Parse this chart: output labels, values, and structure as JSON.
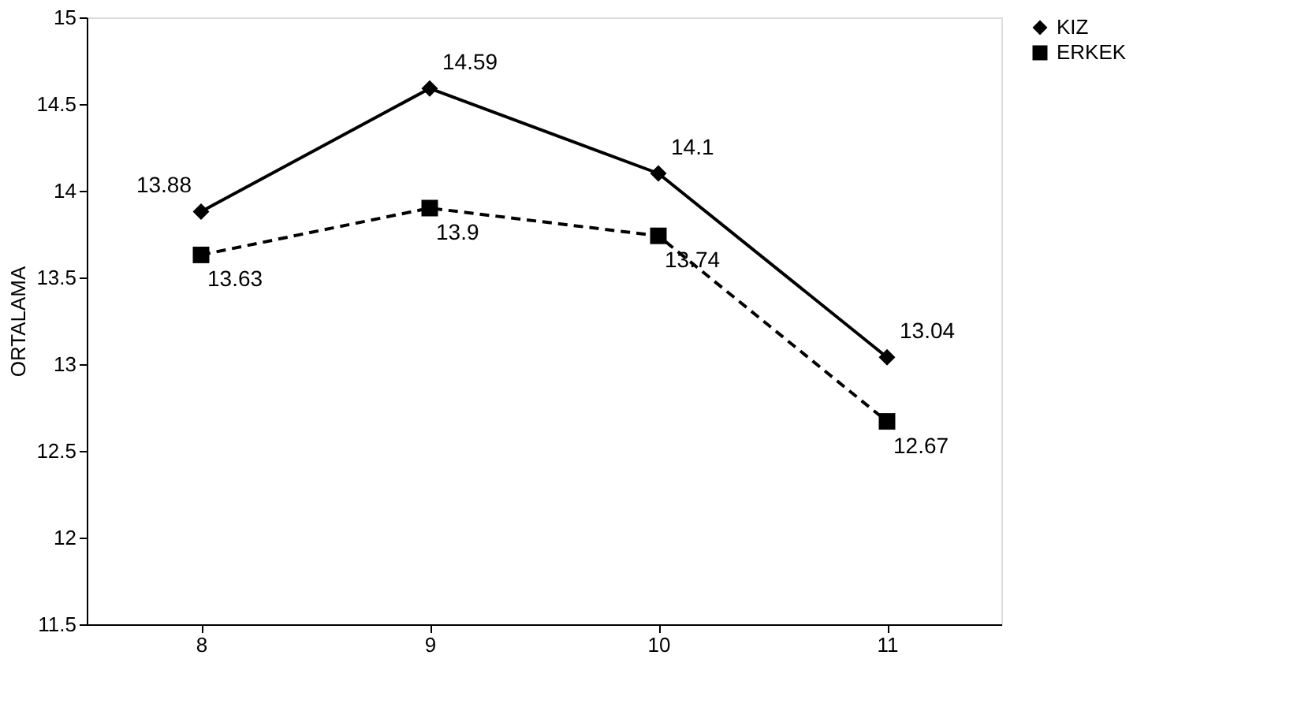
{
  "chart_data": {
    "type": "line",
    "ylabel": "ORTALAMA",
    "categories": [
      "8",
      "9",
      "10",
      "11"
    ],
    "series": [
      {
        "name": "KIZ",
        "color": "#000000",
        "values": [
          13.88,
          14.59,
          14.1,
          13.04
        ],
        "marker": "diamond",
        "line_style": "solid"
      },
      {
        "name": "ERKEK",
        "color": "#000000",
        "values": [
          13.63,
          13.9,
          13.74,
          12.67
        ],
        "marker": "square",
        "line_style": "dashed"
      }
    ],
    "ylim": [
      11.5,
      15
    ],
    "yticks": [
      11.5,
      12,
      12.5,
      13,
      13.5,
      14,
      14.5,
      15
    ],
    "grid": false,
    "legend": "right",
    "data_labels": true
  }
}
